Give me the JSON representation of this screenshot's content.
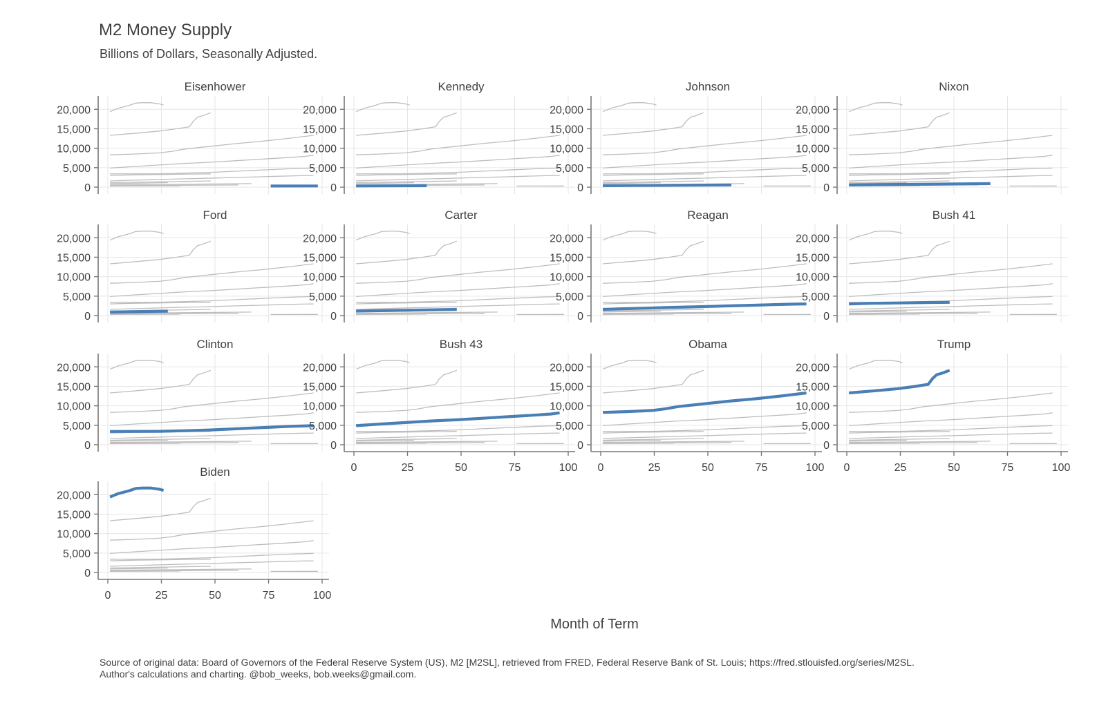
{
  "chart_data": {
    "type": "line",
    "title": "M2 Money Supply",
    "subtitle": "Billions of Dollars, Seasonally Adjusted.",
    "xlabel": "Month of Term",
    "ylabel": "",
    "xlim": [
      0,
      100
    ],
    "ylim": [
      0,
      22000
    ],
    "x_ticks": [
      0,
      25,
      50,
      75,
      100
    ],
    "y_ticks": [
      0,
      5000,
      10000,
      15000,
      20000
    ],
    "y_tick_labels": [
      "0",
      "5,000",
      "10,000",
      "15,000",
      "20,000"
    ],
    "x_tick_labels": [
      "0",
      "25",
      "50",
      "75",
      "100"
    ],
    "grid": true,
    "highlight_color": "#4a7fb5",
    "background_color": "#bdbdbd",
    "panels": [
      "Eisenhower",
      "Kennedy",
      "Johnson",
      "Nixon",
      "Ford",
      "Carter",
      "Reagan",
      "Bush 41",
      "Clinton",
      "Bush 43",
      "Obama",
      "Trump",
      "Biden"
    ],
    "series": [
      {
        "name": "Eisenhower",
        "x": [
          76,
          98
        ],
        "y": [
          287,
          300
        ]
      },
      {
        "name": "Kennedy",
        "x": [
          1,
          34
        ],
        "y": [
          300,
          370
        ]
      },
      {
        "name": "Johnson",
        "x": [
          1,
          61
        ],
        "y": [
          370,
          566
        ]
      },
      {
        "name": "Nixon",
        "x": [
          1,
          67
        ],
        "y": [
          566,
          900
        ]
      },
      {
        "name": "Ford",
        "x": [
          1,
          28
        ],
        "y": [
          900,
          1150
        ]
      },
      {
        "name": "Carter",
        "x": [
          1,
          48
        ],
        "y": [
          1150,
          1600
        ]
      },
      {
        "name": "Reagan",
        "x": [
          1,
          10,
          20,
          30,
          40,
          50,
          60,
          70,
          80,
          90,
          96
        ],
        "y": [
          1600,
          1750,
          1900,
          2050,
          2200,
          2350,
          2500,
          2650,
          2800,
          2950,
          3000
        ]
      },
      {
        "name": "Bush 41",
        "x": [
          1,
          12,
          24,
          36,
          48
        ],
        "y": [
          3000,
          3150,
          3250,
          3350,
          3400
        ]
      },
      {
        "name": "Clinton",
        "x": [
          1,
          24,
          36,
          48,
          60,
          72,
          84,
          96
        ],
        "y": [
          3400,
          3450,
          3600,
          3800,
          4100,
          4400,
          4700,
          4900
        ]
      },
      {
        "name": "Bush 43",
        "x": [
          1,
          12,
          24,
          36,
          48,
          60,
          72,
          84,
          92,
          96
        ],
        "y": [
          4900,
          5300,
          5700,
          6100,
          6400,
          6800,
          7200,
          7600,
          7900,
          8200
        ]
      },
      {
        "name": "Obama",
        "x": [
          1,
          12,
          24,
          30,
          36,
          48,
          60,
          72,
          84,
          96
        ],
        "y": [
          8300,
          8500,
          8800,
          9200,
          9800,
          10500,
          11200,
          11800,
          12500,
          13300
        ]
      },
      {
        "name": "Trump",
        "x": [
          1,
          12,
          24,
          32,
          38,
          40,
          42,
          44,
          48
        ],
        "y": [
          13300,
          13800,
          14400,
          15000,
          15500,
          17000,
          18000,
          18300,
          19100
        ]
      },
      {
        "name": "Biden",
        "x": [
          1,
          5,
          10,
          13,
          16,
          20,
          24,
          26
        ],
        "y": [
          19400,
          20300,
          21000,
          21600,
          21700,
          21700,
          21400,
          21100
        ]
      }
    ]
  },
  "source_line1": "Source of original data: Board of Governors of the Federal Reserve System (US), M2 [M2SL], retrieved from FRED, Federal Reserve Bank of St. Louis; https://fred.stlouisfed.org/series/M2SL.",
  "source_line2": "Author's calculations and charting. @bob_weeks, bob.weeks@gmail.com."
}
